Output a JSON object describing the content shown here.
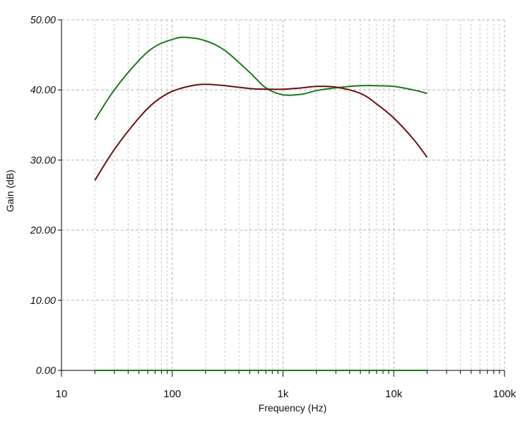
{
  "chart_data": {
    "type": "line",
    "xscale": "log",
    "xlabel": "Frequency (Hz)",
    "ylabel": "Gain (dB)",
    "xlim": [
      10,
      100000
    ],
    "ylim": [
      0,
      50
    ],
    "grid": true,
    "x_tick_labels": [
      "10",
      "100",
      "1k",
      "10k",
      "100k"
    ],
    "y_tick_labels": [
      "0.00",
      "10.00",
      "20.00",
      "30.00",
      "40.00",
      "50.00"
    ],
    "series": [
      {
        "color": "#1a7a1a",
        "points": [
          [
            20,
            35.7
          ],
          [
            30,
            40.0
          ],
          [
            50,
            44.2
          ],
          [
            70,
            46.2
          ],
          [
            100,
            47.2
          ],
          [
            130,
            47.5
          ],
          [
            200,
            47.0
          ],
          [
            300,
            45.6
          ],
          [
            500,
            42.5
          ],
          [
            700,
            40.3
          ],
          [
            1000,
            39.3
          ],
          [
            1500,
            39.4
          ],
          [
            2000,
            39.9
          ],
          [
            3000,
            40.3
          ],
          [
            5000,
            40.6
          ],
          [
            7000,
            40.6
          ],
          [
            10000,
            40.5
          ],
          [
            15000,
            40.0
          ],
          [
            20000,
            39.5
          ]
        ]
      },
      {
        "color": "#6e0f0f",
        "points": [
          [
            20,
            27.1
          ],
          [
            30,
            31.5
          ],
          [
            50,
            36.0
          ],
          [
            70,
            38.3
          ],
          [
            100,
            39.8
          ],
          [
            150,
            40.6
          ],
          [
            200,
            40.8
          ],
          [
            300,
            40.6
          ],
          [
            500,
            40.2
          ],
          [
            700,
            40.1
          ],
          [
            1000,
            40.1
          ],
          [
            1500,
            40.3
          ],
          [
            2000,
            40.5
          ],
          [
            3000,
            40.4
          ],
          [
            5000,
            39.5
          ],
          [
            7000,
            38.0
          ],
          [
            10000,
            36.0
          ],
          [
            15000,
            33.0
          ],
          [
            20000,
            30.4
          ]
        ]
      },
      {
        "color": "#1a7a1a",
        "points": [
          [
            20,
            0.0
          ],
          [
            20000,
            0.0
          ]
        ]
      }
    ]
  }
}
